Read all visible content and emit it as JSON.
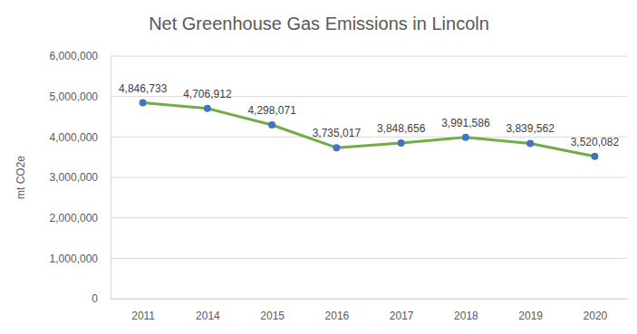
{
  "chart_data": {
    "type": "line",
    "title": "Net Greenhouse Gas Emissions in Lincoln",
    "y_label": "mt CO2e",
    "categories": [
      "2011",
      "2014",
      "2015",
      "2016",
      "2017",
      "2018",
      "2019",
      "2020"
    ],
    "values": [
      4846733,
      4706912,
      4298071,
      3735017,
      3848656,
      3991586,
      3839562,
      3520082
    ],
    "value_labels": [
      "4,846,733",
      "4,706,912",
      "4,298,071",
      "3,735,017",
      "3,848,656",
      "3,991,586",
      "3,839,562",
      "3,520,082"
    ],
    "color": "#70ad47",
    "marker": "circle",
    "ylim": [
      0,
      6000000
    ],
    "yticks": [
      0,
      {
        "value": 1000000,
        "label": "1,000,000"
      },
      {
        "value": 2000000,
        "label": "2,000,000"
      },
      {
        "value": 3000000,
        "label": "3,000,000"
      },
      {
        "value": 4000000,
        "label": "4,000,000"
      },
      {
        "value": 5000000,
        "label": "5,000,000"
      },
      {
        "value": 6000000,
        "label": "6,000,000"
      }
    ],
    "grid": true,
    "data_labels": true
  }
}
